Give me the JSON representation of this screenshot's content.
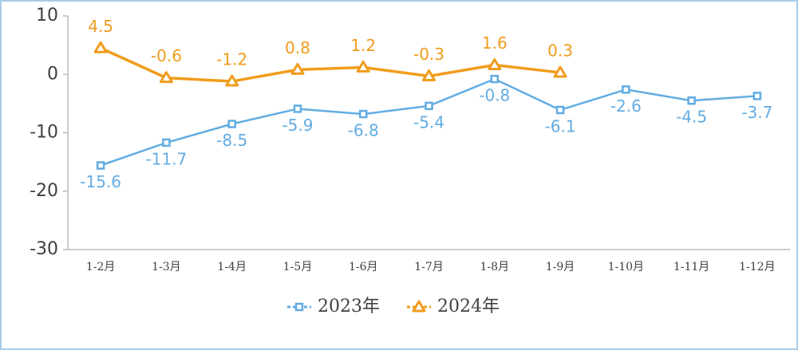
{
  "chart_data": {
    "type": "line",
    "categories": [
      "1-2月",
      "1-3月",
      "1-4月",
      "1-5月",
      "1-6月",
      "1-7月",
      "1-8月",
      "1-9月",
      "1-10月",
      "1-11月",
      "1-12月"
    ],
    "series": [
      {
        "name": "2023年",
        "color": "#62ace3",
        "marker": "square",
        "values": [
          -15.6,
          -11.7,
          -8.5,
          -5.9,
          -6.8,
          -5.4,
          -0.8,
          -6.1,
          -2.6,
          -4.5,
          -3.7
        ]
      },
      {
        "name": "2024年",
        "color": "#f09c1c",
        "marker": "triangle",
        "values": [
          4.5,
          -0.6,
          -1.2,
          0.8,
          1.2,
          -0.3,
          1.6,
          0.3,
          null,
          null,
          null
        ]
      }
    ],
    "ylim": [
      -30,
      10
    ],
    "yticks": [
      -30,
      -20,
      -10,
      0,
      10
    ],
    "grid": false,
    "legend": "bottom"
  }
}
